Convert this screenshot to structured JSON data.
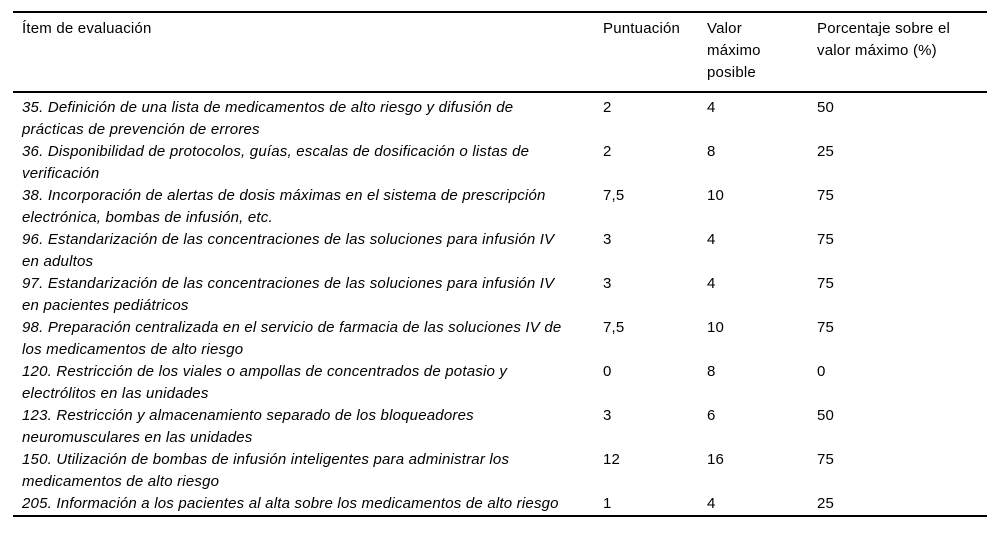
{
  "page": {
    "background_color": "#ffffff",
    "text_color": "#000000",
    "rule_color": "#000000"
  },
  "table": {
    "columns": [
      {
        "label": "Ítem de evaluación"
      },
      {
        "label": "Puntuación"
      },
      {
        "label": "Valor máximo posible"
      },
      {
        "label": "Porcentaje sobre el valor máximo (%)"
      }
    ],
    "rows": [
      {
        "item": "35. Definición de una lista de medicamentos de alto riesgo y difusión de prácticas de prevención de errores",
        "puntuacion": "2",
        "valor_maximo_posible": "4",
        "porcentaje_sobre_valor_maximo": "50"
      },
      {
        "item": "36. Disponibilidad de protocolos, guías, escalas de dosificación o listas de verificación",
        "puntuacion": "2",
        "valor_maximo_posible": "8",
        "porcentaje_sobre_valor_maximo": "25"
      },
      {
        "item": "38. Incorporación de alertas de dosis máximas en el sistema de prescripción electrónica, bombas de infusión, etc.",
        "puntuacion": "7,5",
        "valor_maximo_posible": "10",
        "porcentaje_sobre_valor_maximo": "75"
      },
      {
        "item": "96. Estandarización de las concentraciones de las soluciones para infusión IV en adultos",
        "puntuacion": "3",
        "valor_maximo_posible": "4",
        "porcentaje_sobre_valor_maximo": "75"
      },
      {
        "item": "97. Estandarización de las concentraciones de las soluciones para infusión IV en pacientes pediátricos",
        "puntuacion": "3",
        "valor_maximo_posible": "4",
        "porcentaje_sobre_valor_maximo": "75"
      },
      {
        "item": "98. Preparación centralizada en el servicio de farmacia de las soluciones IV de los medicamentos de alto riesgo",
        "puntuacion": "7,5",
        "valor_maximo_posible": "10",
        "porcentaje_sobre_valor_maximo": "75"
      },
      {
        "item": "120. Restricción de los viales o ampollas de concentrados de potasio y electrólitos en las unidades",
        "puntuacion": "0",
        "valor_maximo_posible": "8",
        "porcentaje_sobre_valor_maximo": "0"
      },
      {
        "item": "123. Restricción y almacenamiento separado de los bloqueadores neuromusculares en las unidades",
        "puntuacion": "3",
        "valor_maximo_posible": "6",
        "porcentaje_sobre_valor_maximo": "50"
      },
      {
        "item": "150. Utilización de bombas de infusión inteligentes para administrar los medicamentos de alto riesgo",
        "puntuacion": "12",
        "valor_maximo_posible": "16",
        "porcentaje_sobre_valor_maximo": "75"
      },
      {
        "item": "205. Información a los pacientes al alta sobre los medicamentos de alto riesgo",
        "puntuacion": "1",
        "valor_maximo_posible": "4",
        "porcentaje_sobre_valor_maximo": "25"
      }
    ]
  }
}
